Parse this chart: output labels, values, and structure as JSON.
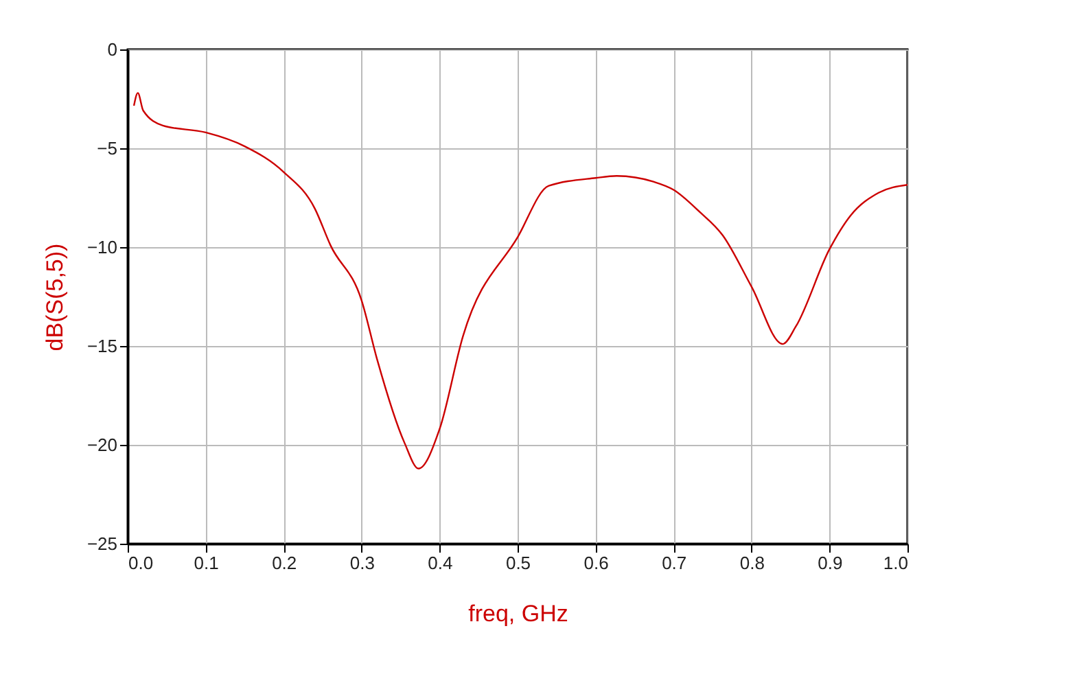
{
  "chart_data": {
    "type": "line",
    "xlabel": "freq, GHz",
    "ylabel": "dB(S(5,5))",
    "x": [
      0.008,
      0.013,
      0.02,
      0.045,
      0.1,
      0.15,
      0.2,
      0.24,
      0.26,
      0.3,
      0.32,
      0.355,
      0.373,
      0.4,
      0.43,
      0.5,
      0.54,
      0.6,
      0.627,
      0.675,
      0.7,
      0.733,
      0.763,
      0.8,
      0.84,
      0.857,
      0.9,
      0.927,
      0.963,
      1.0
    ],
    "series": [
      {
        "color": "#cc0000",
        "values": [
          -2.85,
          -2.2,
          -3.1,
          -3.85,
          -4.2,
          -4.9,
          -6.2,
          -8.05,
          -9.9,
          -12.7,
          -15.7,
          -19.9,
          -21.2,
          -19.2,
          -14.5,
          -9.5,
          -6.9,
          -6.5,
          -6.4,
          -6.7,
          -7.1,
          -8.2,
          -9.4,
          -12,
          -14.9,
          -14,
          -10.1,
          -8.4,
          -7.25,
          -6.85
        ]
      }
    ],
    "xlim": [
      0,
      1
    ],
    "xticks": [
      {
        "value": 0,
        "label": "0.0"
      },
      0.1,
      0.2,
      0.3,
      0.4,
      0.5,
      0.6,
      0.7,
      0.8,
      0.9,
      {
        "value": 1,
        "label": "1.0"
      }
    ],
    "ylim": [
      -25,
      0
    ],
    "yticks": [
      -25,
      -20,
      -15,
      -10,
      -5,
      0
    ],
    "grid": true,
    "line_style": "solid",
    "marker": "none"
  }
}
